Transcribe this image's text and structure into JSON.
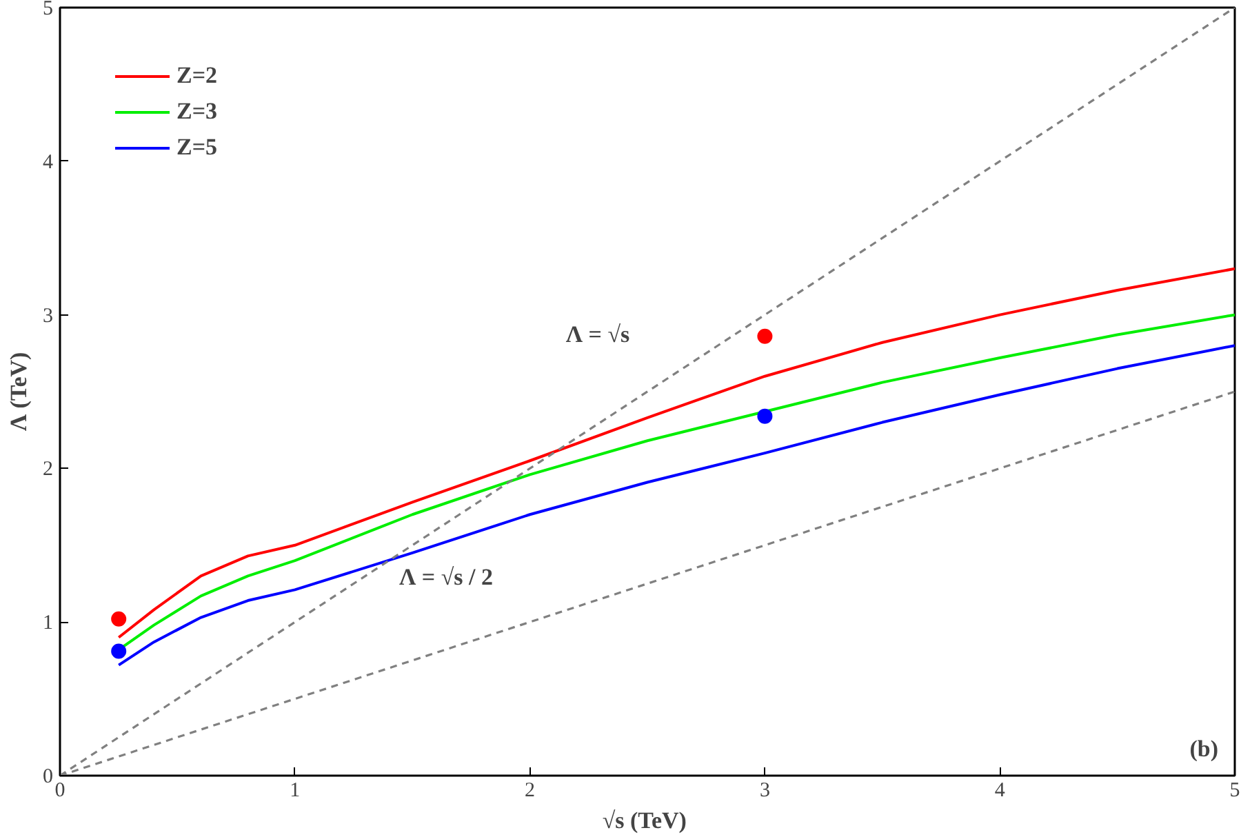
{
  "chart_data": {
    "type": "line",
    "xlabel": "√s  (TeV)",
    "ylabel": "Λ (TeV)",
    "xlim": [
      0,
      5
    ],
    "ylim": [
      0,
      5
    ],
    "xticks": [
      0,
      1,
      2,
      3,
      4,
      5
    ],
    "yticks": [
      0,
      1,
      2,
      3,
      4,
      5
    ],
    "grid": false,
    "legend": "top left",
    "marker": "none",
    "line_style": "solid",
    "series": [
      {
        "name": "Z=2",
        "color": "#ff0000",
        "x": [
          0.25,
          0.4,
          0.6,
          0.8,
          1.0,
          1.5,
          2,
          2.5,
          3,
          3.5,
          4,
          4.5,
          5
        ],
        "values": [
          0.9,
          1.08,
          1.3,
          1.43,
          1.5,
          1.78,
          2.05,
          2.33,
          2.6,
          2.82,
          3.0,
          3.16,
          3.3
        ]
      },
      {
        "name": "Z=3",
        "color": "#00ee00",
        "x": [
          0.25,
          0.4,
          0.6,
          0.8,
          1.0,
          1.5,
          2,
          2.5,
          3,
          3.5,
          4,
          4.5,
          5
        ],
        "values": [
          0.82,
          0.98,
          1.17,
          1.3,
          1.4,
          1.7,
          1.96,
          2.18,
          2.37,
          2.56,
          2.72,
          2.87,
          3.0
        ]
      },
      {
        "name": "Z=5",
        "color": "#0000ff",
        "x": [
          0.25,
          0.4,
          0.6,
          0.8,
          1.0,
          1.5,
          2,
          2.5,
          3,
          3.5,
          4,
          4.5,
          5
        ],
        "values": [
          0.72,
          0.87,
          1.03,
          1.14,
          1.21,
          1.45,
          1.7,
          1.91,
          2.1,
          2.3,
          2.48,
          2.65,
          2.8
        ]
      },
      {
        "color": "#808080",
        "line_style": "dashed",
        "x": [
          0,
          5
        ],
        "values": [
          0,
          5
        ]
      },
      {
        "color": "#808080",
        "line_style": "dashed",
        "x": [
          0,
          5
        ],
        "values": [
          0,
          2.5
        ]
      },
      {
        "type": "scatter",
        "marker": "circle",
        "color": "#ff0000",
        "x": [
          0.25,
          3
        ],
        "values": [
          1.02,
          2.86
        ]
      },
      {
        "type": "scatter",
        "marker": "circle",
        "color": "#0000ff",
        "x": [
          0.25,
          3
        ],
        "values": [
          0.81,
          2.34
        ]
      }
    ],
    "annotations": [
      "Λ = √s",
      "Λ = √s / 2",
      "(b)"
    ]
  }
}
